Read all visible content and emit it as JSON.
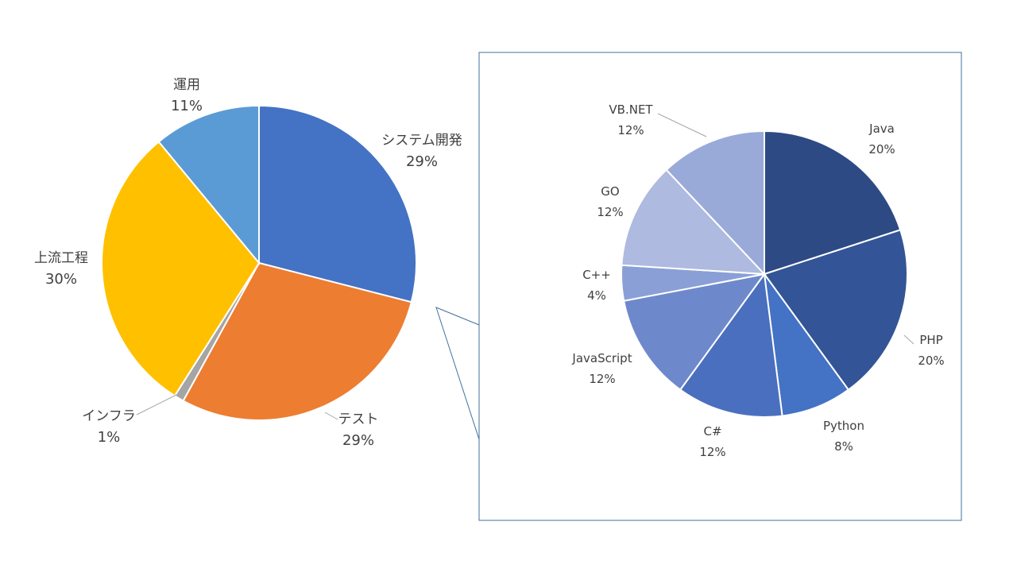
{
  "chart_data": [
    {
      "type": "pie",
      "slices": [
        {
          "name": "システム開発",
          "value": 29,
          "label_pct": "29%",
          "color": "#4472c4"
        },
        {
          "name": "テスト",
          "value": 29,
          "label_pct": "29%",
          "color": "#ed7d31"
        },
        {
          "name": "インフラ",
          "value": 1,
          "label_pct": "1%",
          "color": "#a5a5a5"
        },
        {
          "name": "上流工程",
          "value": 30,
          "label_pct": "30%",
          "color": "#ffc000"
        },
        {
          "name": "運用",
          "value": 11,
          "label_pct": "11%",
          "color": "#5b9bd5"
        }
      ]
    },
    {
      "type": "pie",
      "slices": [
        {
          "name": "Java",
          "value": 20,
          "label_pct": "20%",
          "color": "#2e4a84"
        },
        {
          "name": "PHP",
          "value": 20,
          "label_pct": "20%",
          "color": "#335496"
        },
        {
          "name": "Python",
          "value": 8,
          "label_pct": "8%",
          "color": "#4472c4"
        },
        {
          "name": "C#",
          "value": 12,
          "label_pct": "12%",
          "color": "#4b6fbf"
        },
        {
          "name": "JavaScript",
          "value": 12,
          "label_pct": "12%",
          "color": "#6e89cb"
        },
        {
          "name": "C++",
          "value": 4,
          "label_pct": "4%",
          "color": "#8a9fd6"
        },
        {
          "name": "GO",
          "value": 12,
          "label_pct": "12%",
          "color": "#aebadf"
        },
        {
          "name": "VB.NET",
          "value": 12,
          "label_pct": "12%",
          "color": "#9aaad8"
        }
      ]
    }
  ]
}
